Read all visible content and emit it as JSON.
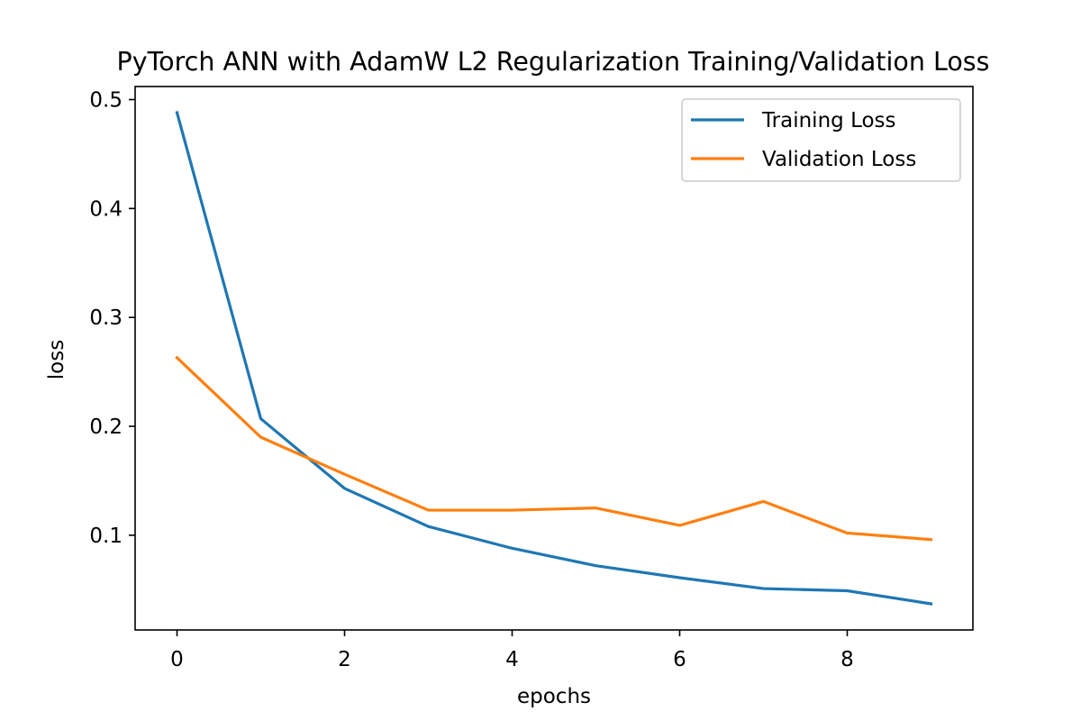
{
  "chart_data": {
    "type": "line",
    "title": "PyTorch ANN with AdamW L2 Regularization Training/Validation Loss",
    "xlabel": "epochs",
    "ylabel": "loss",
    "xlim": [
      -0.5,
      9.5
    ],
    "ylim": [
      0.013,
      0.512
    ],
    "xticks": [
      0,
      2,
      4,
      6,
      8
    ],
    "xtick_labels": [
      "0",
      "2",
      "4",
      "6",
      "8"
    ],
    "yticks": [
      0.1,
      0.2,
      0.3,
      0.4,
      0.5
    ],
    "ytick_labels": [
      "0.1",
      "0.2",
      "0.3",
      "0.4",
      "0.5"
    ],
    "grid": false,
    "legend_position": "top-right",
    "x": [
      0,
      1,
      2,
      3,
      4,
      5,
      6,
      7,
      8,
      9
    ],
    "series": [
      {
        "name": "Training Loss",
        "color": "#1f77b4",
        "values": [
          0.488,
          0.207,
          0.143,
          0.108,
          0.088,
          0.072,
          0.061,
          0.051,
          0.049,
          0.037
        ]
      },
      {
        "name": "Validation Loss",
        "color": "#ff7f0e",
        "values": [
          0.263,
          0.19,
          0.156,
          0.123,
          0.123,
          0.125,
          0.109,
          0.131,
          0.102,
          0.096
        ]
      }
    ]
  }
}
